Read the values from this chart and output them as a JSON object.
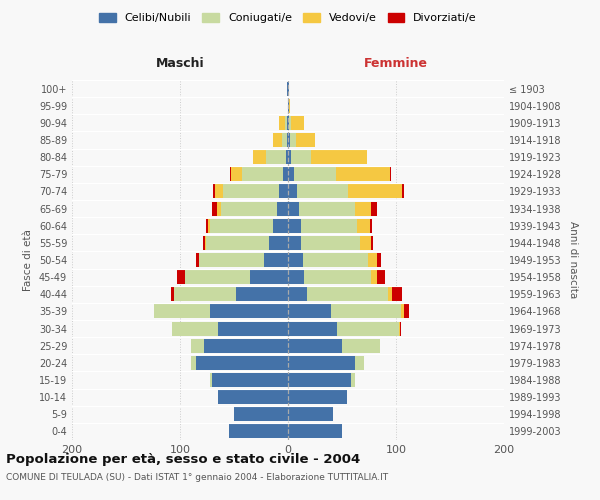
{
  "age_groups": [
    "0-4",
    "5-9",
    "10-14",
    "15-19",
    "20-24",
    "25-29",
    "30-34",
    "35-39",
    "40-44",
    "45-49",
    "50-54",
    "55-59",
    "60-64",
    "65-69",
    "70-74",
    "75-79",
    "80-84",
    "85-89",
    "90-94",
    "95-99",
    "100+"
  ],
  "birth_years": [
    "1999-2003",
    "1994-1998",
    "1989-1993",
    "1984-1988",
    "1979-1983",
    "1974-1978",
    "1969-1973",
    "1964-1968",
    "1959-1963",
    "1954-1958",
    "1949-1953",
    "1944-1948",
    "1939-1943",
    "1934-1938",
    "1929-1933",
    "1924-1928",
    "1919-1923",
    "1914-1918",
    "1909-1913",
    "1904-1908",
    "≤ 1903"
  ],
  "maschi": {
    "celibi": [
      55,
      50,
      65,
      70,
      85,
      78,
      65,
      72,
      48,
      35,
      22,
      18,
      14,
      10,
      8,
      5,
      2,
      1,
      1,
      0,
      1
    ],
    "coniugati": [
      0,
      0,
      0,
      2,
      5,
      12,
      42,
      52,
      58,
      60,
      60,
      58,
      58,
      52,
      52,
      38,
      18,
      5,
      2,
      0,
      0
    ],
    "vedovi": [
      0,
      0,
      0,
      0,
      0,
      0,
      0,
      0,
      0,
      0,
      0,
      1,
      2,
      4,
      8,
      10,
      12,
      8,
      5,
      0,
      0
    ],
    "divorziati": [
      0,
      0,
      0,
      0,
      0,
      0,
      0,
      0,
      2,
      8,
      3,
      2,
      2,
      4,
      1,
      1,
      0,
      0,
      0,
      0,
      0
    ]
  },
  "femmine": {
    "nubili": [
      50,
      42,
      55,
      58,
      62,
      50,
      45,
      40,
      18,
      15,
      14,
      12,
      12,
      10,
      8,
      6,
      3,
      2,
      1,
      1,
      1
    ],
    "coniugate": [
      0,
      0,
      0,
      4,
      8,
      35,
      58,
      65,
      75,
      62,
      60,
      55,
      52,
      52,
      48,
      38,
      18,
      5,
      2,
      0,
      0
    ],
    "vedove": [
      0,
      0,
      0,
      0,
      0,
      0,
      1,
      2,
      3,
      5,
      8,
      10,
      12,
      15,
      50,
      50,
      52,
      18,
      12,
      1,
      0
    ],
    "divorziate": [
      0,
      0,
      0,
      0,
      0,
      0,
      1,
      5,
      10,
      8,
      4,
      2,
      2,
      5,
      1,
      1,
      0,
      0,
      0,
      0,
      0
    ]
  },
  "colors": {
    "celibi_nubili": "#4472a8",
    "coniugati": "#c8daa0",
    "vedovi": "#f5c842",
    "divorziati": "#cc0000"
  },
  "xlim": 200,
  "title": "Popolazione per età, sesso e stato civile - 2004",
  "subtitle": "COMUNE DI TEULADA (SU) - Dati ISTAT 1° gennaio 2004 - Elaborazione TUTTITALIA.IT",
  "ylabel_left": "Fasce di età",
  "ylabel_right": "Anni di nascita",
  "xlabel_maschi": "Maschi",
  "xlabel_femmine": "Femmine",
  "bg_color": "#f8f8f8",
  "grid_color": "#cccccc"
}
